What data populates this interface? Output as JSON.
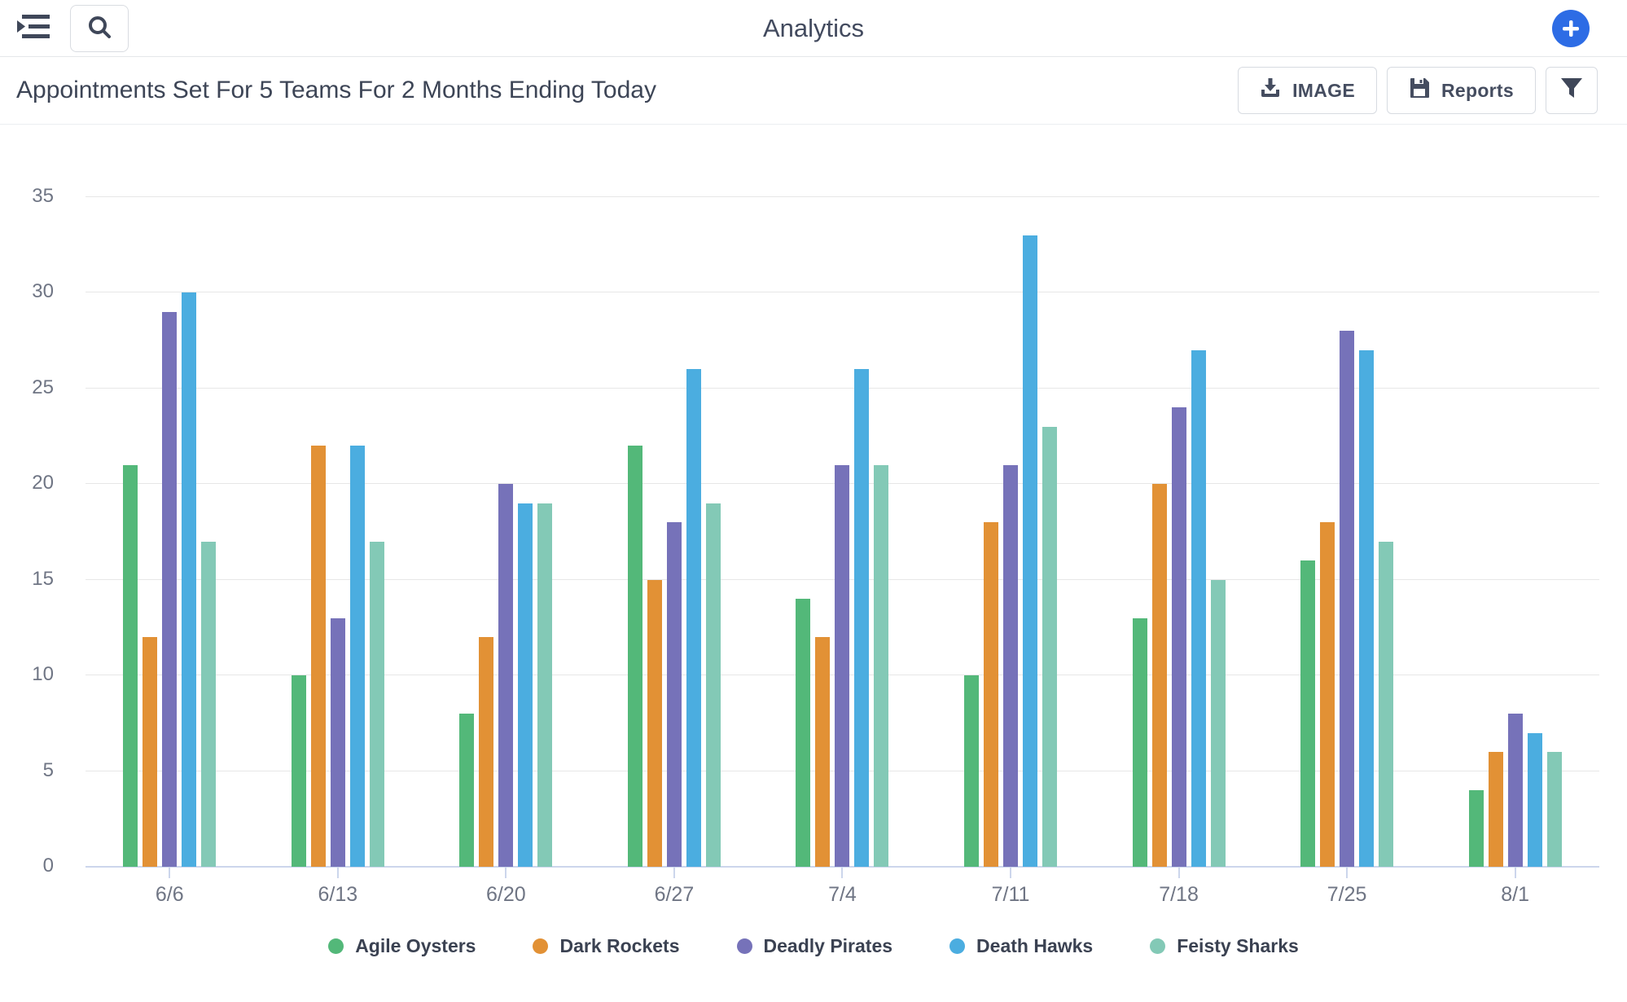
{
  "header": {
    "title": "Analytics"
  },
  "toolbar": {
    "image_label": "IMAGE",
    "reports_label": "Reports"
  },
  "chart_data": {
    "type": "bar",
    "title": "Appointments Set For 5 Teams For 2 Months Ending Today",
    "categories": [
      "6/6",
      "6/13",
      "6/20",
      "6/27",
      "7/4",
      "7/11",
      "7/18",
      "7/25",
      "8/1"
    ],
    "series": [
      {
        "name": "Agile Oysters",
        "color": "#53b879",
        "values": [
          21,
          10,
          8,
          22,
          14,
          10,
          13,
          16,
          4
        ]
      },
      {
        "name": "Dark Rockets",
        "color": "#e29135",
        "values": [
          12,
          22,
          12,
          15,
          12,
          18,
          20,
          18,
          6
        ]
      },
      {
        "name": "Deadly Pirates",
        "color": "#7672b9",
        "values": [
          29,
          13,
          20,
          18,
          21,
          21,
          24,
          28,
          8
        ]
      },
      {
        "name": "Death Hawks",
        "color": "#4bade0",
        "values": [
          30,
          22,
          19,
          26,
          26,
          33,
          27,
          27,
          7
        ]
      },
      {
        "name": "Feisty Sharks",
        "color": "#83c9b6",
        "values": [
          17,
          17,
          19,
          19,
          21,
          23,
          15,
          17,
          6
        ]
      }
    ],
    "ylim": [
      0,
      35
    ],
    "yticks": [
      0,
      5,
      10,
      15,
      20,
      25,
      30,
      35
    ],
    "grid": true,
    "legend_position": "bottom"
  },
  "colors": {
    "accent_blue": "#2d6ce5",
    "axis": "#ccd6ec",
    "gridline": "#e7e7e7",
    "text_dark": "#3d4556",
    "text_muted": "#6f7584"
  }
}
